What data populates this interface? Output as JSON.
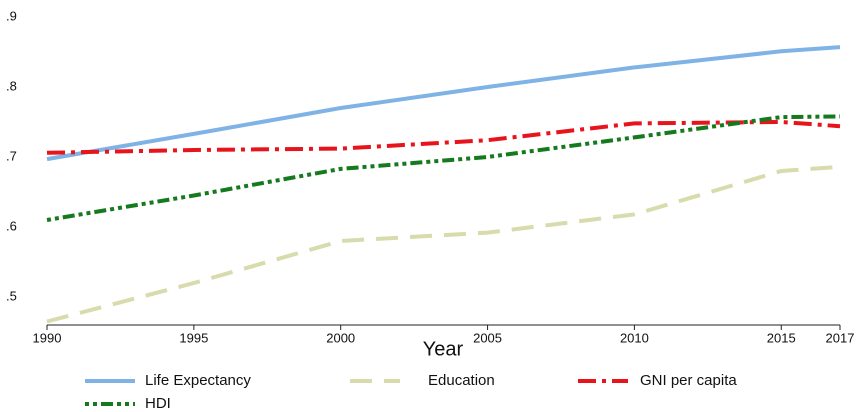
{
  "chart_data": {
    "type": "line",
    "x_label": "Year",
    "x": [
      1990,
      1995,
      2000,
      2005,
      2010,
      2015,
      2017
    ],
    "series": [
      {
        "name": "Life Expectancy",
        "color": "#7fb3e6",
        "style": "solid",
        "values": [
          0.697,
          0.733,
          0.77,
          0.8,
          0.828,
          0.851,
          0.857
        ]
      },
      {
        "name": "Education",
        "color": "#d8dbab",
        "style": "dash",
        "values": [
          0.465,
          0.52,
          0.58,
          0.592,
          0.618,
          0.68,
          0.686
        ]
      },
      {
        "name": "GNI per capita",
        "color": "#e8141b",
        "style": "dashdot",
        "values": [
          0.706,
          0.71,
          0.712,
          0.724,
          0.748,
          0.75,
          0.744
        ]
      },
      {
        "name": "HDI",
        "color": "#157a1e",
        "style": "dotdash",
        "values": [
          0.61,
          0.645,
          0.683,
          0.7,
          0.728,
          0.757,
          0.758
        ]
      }
    ],
    "xlim": [
      1990,
      2017
    ],
    "xticks": [
      1990,
      1995,
      2000,
      2005,
      2010,
      2015,
      2017
    ],
    "ylim": [
      0.46,
      0.9
    ],
    "yticks": [
      {
        "value": 0.9,
        "label": ".9"
      },
      {
        "value": 0.8,
        "label": ".8"
      },
      {
        "value": 0.7,
        "label": ".7"
      },
      {
        "value": 0.6,
        "label": ".6"
      },
      {
        "value": 0.5,
        "label": ".5"
      }
    ],
    "grid": false,
    "legend": "bottom"
  }
}
